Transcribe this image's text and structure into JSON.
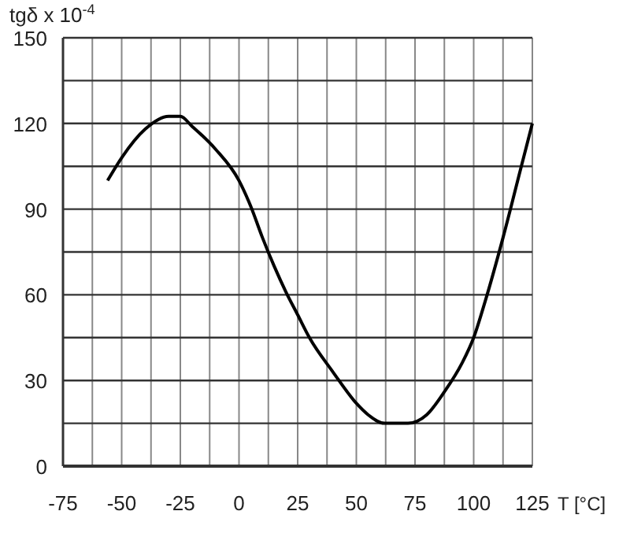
{
  "chart_data": {
    "type": "line",
    "ylabel": "tgδ x 10$^{-4}$",
    "xlabel": "T [°C]",
    "x": [
      -56,
      -50,
      -40,
      -30,
      -25,
      -20,
      -10,
      0,
      5,
      10,
      15,
      20,
      25,
      30,
      40,
      50,
      55,
      62,
      72,
      80,
      87.5,
      95,
      100,
      105,
      112.5,
      120,
      125
    ],
    "series": [
      {
        "color": "#000000",
        "values": [
          100,
          108,
          118,
          122.5,
          122.5,
          119,
          111,
          100,
          91,
          80,
          70,
          61,
          53,
          45,
          33,
          22,
          18,
          15,
          15,
          18,
          26,
          36,
          45,
          58,
          80,
          104,
          120
        ]
      }
    ],
    "xlim": [
      -75,
      125
    ],
    "xticks": [
      -75,
      {
        "value": -62.5,
        "label": null
      },
      -50,
      {
        "value": -37.5,
        "label": null
      },
      -25,
      {
        "value": -12.5,
        "label": null
      },
      0,
      {
        "value": 12.5,
        "label": null
      },
      25,
      {
        "value": 37.5,
        "label": null
      },
      50,
      {
        "value": 62.5,
        "label": null
      },
      75,
      {
        "value": 87.5,
        "label": null
      },
      100,
      {
        "value": 112.5,
        "label": null
      },
      125
    ],
    "ylim": [
      0,
      150
    ],
    "yticks": [
      0,
      {
        "value": 15,
        "label": null
      },
      30,
      {
        "value": 45,
        "label": null
      },
      60,
      {
        "value": 75,
        "label": null
      },
      90,
      {
        "value": 105,
        "label": null
      },
      120,
      {
        "value": 135,
        "label": null
      },
      150
    ],
    "grid": true,
    "marker": "none",
    "line_style": "solid"
  }
}
